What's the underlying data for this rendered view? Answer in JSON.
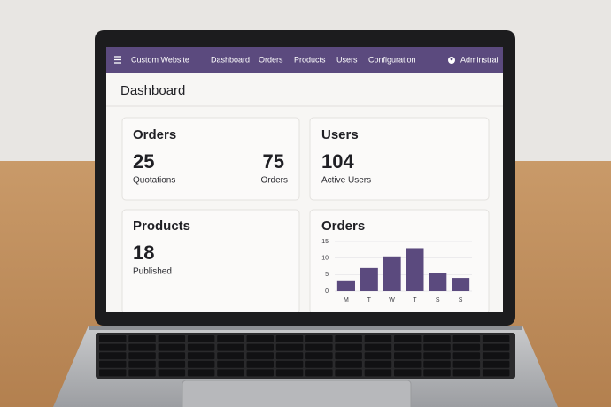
{
  "nav": {
    "brand": "Custom Website",
    "menu": [
      "Dashboard",
      "Orders",
      "Products",
      "Users",
      "Configuration"
    ],
    "user": "Adminstrai"
  },
  "page": {
    "title": "Dashboard"
  },
  "cards": {
    "orders": {
      "title": "Orders",
      "stats": [
        {
          "value": "25",
          "label": "Quotations"
        },
        {
          "value": "75",
          "label": "Orders"
        }
      ]
    },
    "users": {
      "title": "Users",
      "value": "104",
      "label": "Active Users"
    },
    "products": {
      "title": "Products",
      "value": "18",
      "label": "Published"
    }
  },
  "chart_data": {
    "type": "bar",
    "title": "Orders",
    "categories": [
      "M",
      "T",
      "W",
      "T",
      "S",
      "S"
    ],
    "values": [
      3,
      7,
      10.5,
      13,
      5.5,
      4
    ],
    "color": "#5b4a7e",
    "ylim": [
      0,
      15
    ],
    "yticks": [
      0,
      5,
      10,
      15
    ],
    "grid": true
  }
}
